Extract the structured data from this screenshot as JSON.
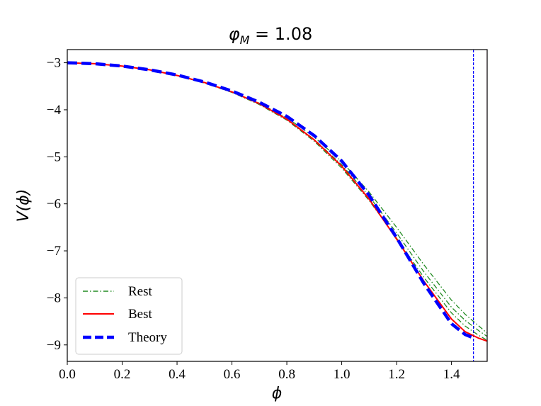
{
  "chart_data": {
    "type": "line",
    "title": "φ_M = 1.08",
    "title_main": "φ",
    "title_sub": "M",
    "title_rest": " = 1.08",
    "xlabel": "ϕ",
    "ylabel": "V(ϕ)",
    "xlim": [
      0.0,
      1.53
    ],
    "ylim": [
      -9.35,
      -2.72
    ],
    "xticks": [
      "0.0",
      "0.2",
      "0.4",
      "0.6",
      "0.8",
      "1.0",
      "1.2",
      "1.4"
    ],
    "xtick_values": [
      0.0,
      0.2,
      0.4,
      0.6,
      0.8,
      1.0,
      1.2,
      1.4
    ],
    "yticks": [
      "−3",
      "−4",
      "−5",
      "−6",
      "−7",
      "−8",
      "−9"
    ],
    "ytick_values": [
      -3,
      -4,
      -5,
      -6,
      -7,
      -8,
      -9
    ],
    "grid": false,
    "legend_position": "lower-left",
    "vlines": [
      {
        "x": 1.48,
        "color": "#0000ff",
        "style": "dashed"
      },
      {
        "x": 1.53,
        "color": "#8b1a4a",
        "style": "solid"
      }
    ],
    "series": [
      {
        "name": "Rest",
        "color": "#228b22",
        "style": "dashdot",
        "x": [
          0.0,
          0.1,
          0.2,
          0.3,
          0.4,
          0.5,
          0.6,
          0.7,
          0.8,
          0.9,
          1.0,
          1.1,
          1.2,
          1.3,
          1.4,
          1.45,
          1.5,
          1.53
        ],
        "y": [
          -3.0,
          -3.02,
          -3.07,
          -3.15,
          -3.27,
          -3.42,
          -3.62,
          -3.86,
          -4.17,
          -4.58,
          -5.1,
          -5.75,
          -6.5,
          -7.3,
          -8.05,
          -8.35,
          -8.6,
          -8.75
        ]
      },
      {
        "name": "Rest",
        "color": "#228b22",
        "style": "dashdot",
        "x": [
          0.0,
          0.1,
          0.2,
          0.3,
          0.4,
          0.5,
          0.6,
          0.7,
          0.8,
          0.9,
          1.0,
          1.1,
          1.2,
          1.3,
          1.4,
          1.45,
          1.5,
          1.53
        ],
        "y": [
          -3.0,
          -3.02,
          -3.07,
          -3.15,
          -3.27,
          -3.43,
          -3.63,
          -3.88,
          -4.2,
          -4.63,
          -5.17,
          -5.84,
          -6.62,
          -7.45,
          -8.2,
          -8.48,
          -8.7,
          -8.82
        ]
      },
      {
        "name": "Rest",
        "color": "#228b22",
        "style": "dashdot",
        "x": [
          0.0,
          0.1,
          0.2,
          0.3,
          0.4,
          0.5,
          0.6,
          0.7,
          0.8,
          0.9,
          1.0,
          1.1,
          1.2,
          1.3,
          1.4,
          1.45,
          1.5,
          1.53
        ],
        "y": [
          -3.0,
          -3.02,
          -3.07,
          -3.15,
          -3.27,
          -3.43,
          -3.63,
          -3.89,
          -4.22,
          -4.67,
          -5.24,
          -5.93,
          -6.73,
          -7.57,
          -8.32,
          -8.6,
          -8.8,
          -8.9
        ]
      },
      {
        "name": "Best",
        "color": "#ff0000",
        "style": "solid",
        "x": [
          0.0,
          0.1,
          0.2,
          0.3,
          0.4,
          0.5,
          0.6,
          0.7,
          0.8,
          0.9,
          1.0,
          1.1,
          1.2,
          1.3,
          1.4,
          1.45,
          1.5,
          1.53
        ],
        "y": [
          -3.0,
          -3.02,
          -3.07,
          -3.15,
          -3.27,
          -3.42,
          -3.62,
          -3.87,
          -4.2,
          -4.64,
          -5.2,
          -5.9,
          -6.75,
          -7.65,
          -8.45,
          -8.72,
          -8.86,
          -8.92
        ]
      },
      {
        "name": "Theory",
        "color": "#0000ff",
        "style": "dashed",
        "x": [
          0.0,
          0.1,
          0.2,
          0.3,
          0.4,
          0.5,
          0.6,
          0.7,
          0.8,
          0.9,
          1.0,
          1.1,
          1.2,
          1.3,
          1.4,
          1.45,
          1.48
        ],
        "y": [
          -3.0,
          -3.02,
          -3.07,
          -3.15,
          -3.26,
          -3.41,
          -3.6,
          -3.84,
          -4.14,
          -4.55,
          -5.09,
          -5.82,
          -6.72,
          -7.7,
          -8.55,
          -8.78,
          -8.85
        ]
      }
    ],
    "legend": [
      {
        "label": "Rest",
        "color": "#228b22",
        "style": "dashdot"
      },
      {
        "label": "Best",
        "color": "#ff0000",
        "style": "solid"
      },
      {
        "label": "Theory",
        "color": "#0000ff",
        "style": "dashed"
      }
    ]
  }
}
